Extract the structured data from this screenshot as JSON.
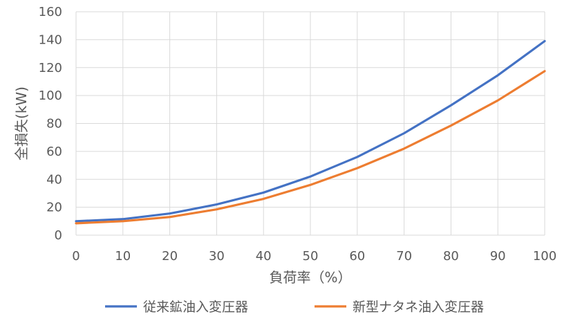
{
  "chart_data": {
    "type": "line",
    "xlabel": "負荷率（%）",
    "ylabel": "全損失(kW)",
    "x": [
      0,
      10,
      20,
      30,
      40,
      50,
      60,
      70,
      80,
      90,
      100
    ],
    "xlim": [
      0,
      100
    ],
    "ylim": [
      0,
      160
    ],
    "xticks": [
      0,
      10,
      20,
      30,
      40,
      50,
      60,
      70,
      80,
      90,
      100
    ],
    "yticks": [
      0,
      20,
      40,
      60,
      80,
      100,
      120,
      140,
      160
    ],
    "grid": true,
    "legend_position": "bottom",
    "series": [
      {
        "name": "従来鉱油入変圧器",
        "color": "#4472c4",
        "values": [
          10,
          11.5,
          15.5,
          22,
          30.5,
          42,
          56,
          73,
          93,
          114.5,
          139
        ]
      },
      {
        "name": "新型ナタネ油入変圧器",
        "color": "#ed7d31",
        "values": [
          8.5,
          10,
          13,
          18.5,
          26,
          36,
          48,
          62,
          78.5,
          96.5,
          117.5
        ]
      }
    ]
  }
}
